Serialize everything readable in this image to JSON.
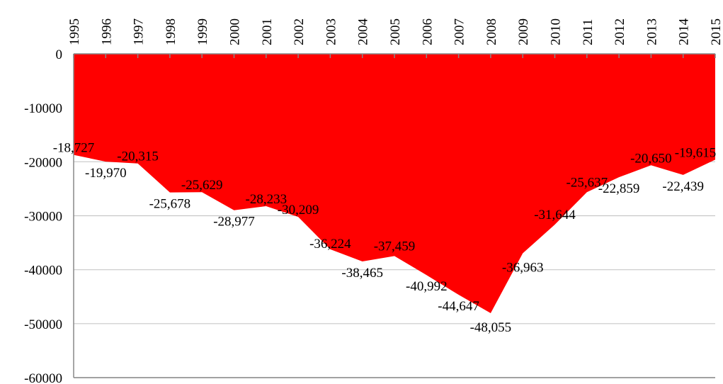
{
  "chart_data": {
    "type": "area",
    "categories": [
      "1995",
      "1996",
      "1997",
      "1998",
      "1999",
      "2000",
      "2001",
      "2002",
      "2003",
      "2004",
      "2005",
      "2006",
      "2007",
      "2008",
      "2009",
      "2010",
      "2011",
      "2012",
      "2013",
      "2014",
      "2015"
    ],
    "series": [
      {
        "color": "#ff0000",
        "values": [
          -18727,
          -19970,
          -20315,
          -25678,
          -25629,
          -28977,
          -28233,
          -30209,
          -36224,
          -38465,
          -37459,
          -40992,
          -44647,
          -48055,
          -36963,
          -31644,
          -25637,
          -22859,
          -20650,
          -22439,
          -19615
        ],
        "value_labels": [
          "-18,727",
          "-19,970",
          "-20,315",
          "-25,678",
          "-25,629",
          "-28,977",
          "-28,233",
          "-30,209",
          "-36,224",
          "-38,465",
          "-37,459",
          "-40,992",
          "-44,647",
          "-48,055",
          "-36,963",
          "-31,644",
          "-25,637",
          "-22,859",
          "-20,650",
          "-22,439",
          "-19,615"
        ]
      }
    ],
    "ylim": [
      -60000,
      0
    ],
    "yticks": [
      0,
      -10000,
      -20000,
      -30000,
      -40000,
      -50000,
      -60000
    ],
    "grid": true
  }
}
